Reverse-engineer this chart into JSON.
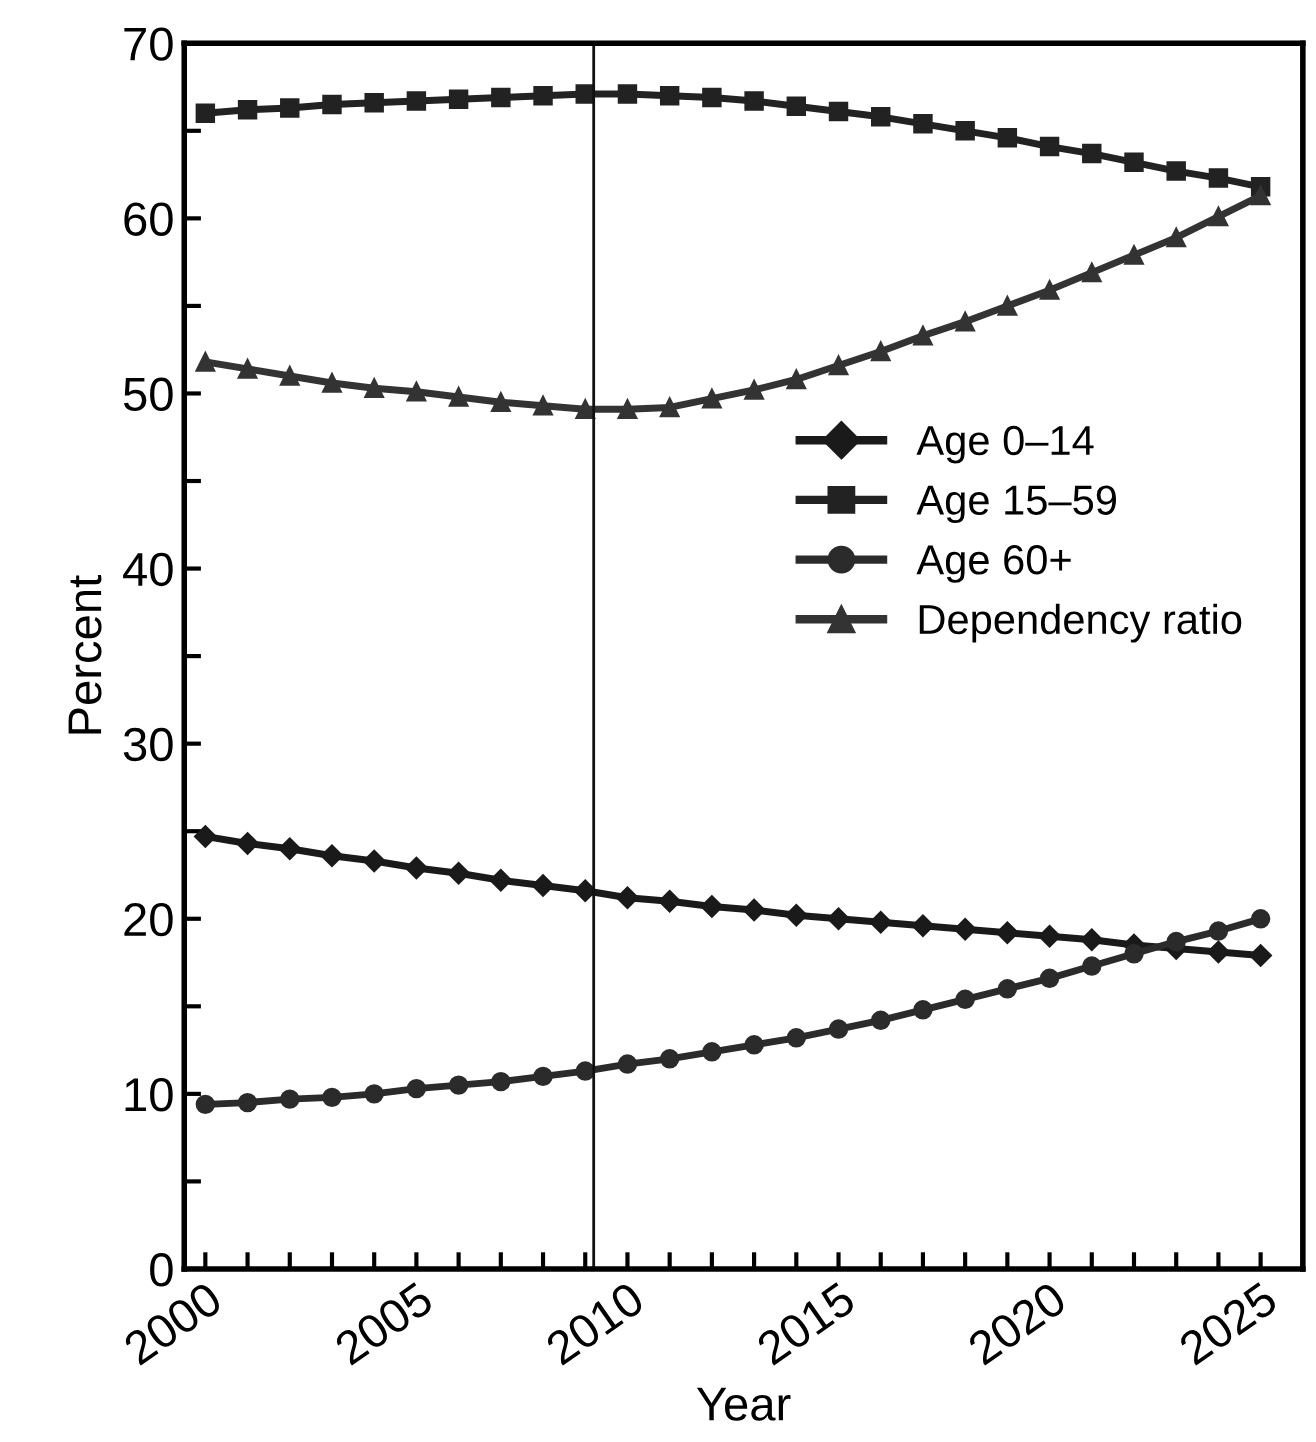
{
  "chart_data": {
    "type": "line",
    "xlabel": "Year",
    "ylabel": "Percent",
    "x": [
      2000,
      2001,
      2002,
      2003,
      2004,
      2005,
      2006,
      2007,
      2008,
      2009,
      2010,
      2011,
      2012,
      2013,
      2014,
      2015,
      2016,
      2017,
      2018,
      2019,
      2020,
      2021,
      2022,
      2023,
      2024,
      2025
    ],
    "series": [
      {
        "name": "Age 0–14",
        "color": "#1a1a1a",
        "marker": "diamond",
        "values": [
          24.7,
          24.3,
          24.0,
          23.6,
          23.3,
          22.9,
          22.6,
          22.2,
          21.9,
          21.6,
          21.2,
          21.0,
          20.7,
          20.5,
          20.2,
          20.0,
          19.8,
          19.6,
          19.4,
          19.2,
          19.0,
          18.8,
          18.5,
          18.3,
          18.1,
          17.9
        ]
      },
      {
        "name": "Age 15–59",
        "color": "#222222",
        "marker": "square",
        "values": [
          66.0,
          66.2,
          66.3,
          66.5,
          66.6,
          66.7,
          66.8,
          66.9,
          67.0,
          67.1,
          67.1,
          67.0,
          66.9,
          66.7,
          66.4,
          66.1,
          65.8,
          65.4,
          65.0,
          64.6,
          64.1,
          63.7,
          63.2,
          62.7,
          62.3,
          61.8
        ]
      },
      {
        "name": "Age 60+",
        "color": "#2b2b2b",
        "marker": "circle",
        "values": [
          9.4,
          9.5,
          9.7,
          9.8,
          10.0,
          10.3,
          10.5,
          10.7,
          11.0,
          11.3,
          11.7,
          12.0,
          12.4,
          12.8,
          13.2,
          13.7,
          14.2,
          14.8,
          15.4,
          16.0,
          16.6,
          17.3,
          18.0,
          18.7,
          19.3,
          20.0
        ]
      },
      {
        "name": "Dependency ratio",
        "color": "#333333",
        "marker": "triangle",
        "values": [
          51.8,
          51.4,
          51.0,
          50.6,
          50.3,
          50.1,
          49.8,
          49.5,
          49.3,
          49.1,
          49.1,
          49.2,
          49.7,
          50.2,
          50.8,
          51.6,
          52.4,
          53.3,
          54.1,
          55.0,
          55.9,
          56.9,
          57.9,
          58.9,
          60.1,
          61.3
        ]
      }
    ],
    "xlim": [
      1999.5,
      2026
    ],
    "xticks": [
      2000,
      {
        "value": 2001,
        "label": null
      },
      {
        "value": 2002,
        "label": null
      },
      {
        "value": 2003,
        "label": null
      },
      {
        "value": 2004,
        "label": null
      },
      2005,
      {
        "value": 2006,
        "label": null
      },
      {
        "value": 2007,
        "label": null
      },
      {
        "value": 2008,
        "label": null
      },
      {
        "value": 2009,
        "label": null
      },
      2010,
      {
        "value": 2011,
        "label": null
      },
      {
        "value": 2012,
        "label": null
      },
      {
        "value": 2013,
        "label": null
      },
      {
        "value": 2014,
        "label": null
      },
      2015,
      {
        "value": 2016,
        "label": null
      },
      {
        "value": 2017,
        "label": null
      },
      {
        "value": 2018,
        "label": null
      },
      {
        "value": 2019,
        "label": null
      },
      2020,
      {
        "value": 2021,
        "label": null
      },
      {
        "value": 2022,
        "label": null
      },
      {
        "value": 2023,
        "label": null
      },
      {
        "value": 2024,
        "label": null
      },
      2025
    ],
    "ylim": [
      0,
      70
    ],
    "yticks": [
      0,
      {
        "value": 5,
        "label": null
      },
      10,
      {
        "value": 15,
        "label": null
      },
      20,
      {
        "value": 25,
        "label": null
      },
      30,
      {
        "value": 35,
        "label": null
      },
      40,
      {
        "value": 45,
        "label": null
      },
      50,
      {
        "value": 55,
        "label": null
      },
      60,
      {
        "value": 65,
        "label": null
      },
      70
    ],
    "ref_lines": [
      {
        "axis": "x",
        "value": 2009.2,
        "color": "#111111"
      }
    ],
    "legend": "right",
    "grid": false,
    "line_style": "solid"
  }
}
